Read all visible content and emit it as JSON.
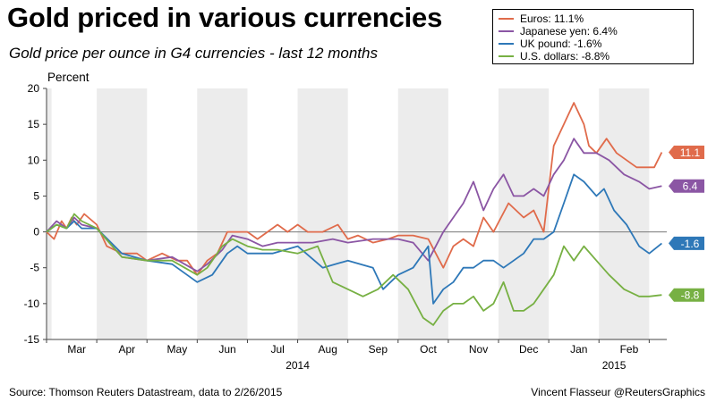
{
  "header": {
    "title": "Gold priced in various currencies",
    "subtitle": "Gold price per ounce in G4 currencies - last 12 months"
  },
  "footer": {
    "source": "Source: Thomson Reuters Datastream, data to 2/26/2015",
    "credit": "Vincent Flasseur @ReutersGraphics"
  },
  "chart_data": {
    "type": "line",
    "ylabel": "Percent",
    "ylim": [
      -15,
      20
    ],
    "yticks": [
      20,
      15,
      10,
      5,
      0,
      -5,
      -10,
      -15
    ],
    "grid": "alternating month bands",
    "legend_position": "top-right",
    "x_range": [
      0,
      12.35
    ],
    "months": [
      "Mar",
      "Apr",
      "May",
      "Jun",
      "Jul",
      "Aug",
      "Sep",
      "Oct",
      "Nov",
      "Dec",
      "Jan",
      "Feb"
    ],
    "year_labels": [
      {
        "label": "2014",
        "at": 5.0
      },
      {
        "label": "2015",
        "at": 11.3
      }
    ],
    "series": [
      {
        "name": "Euros: 11.1%",
        "end_label": "11.1",
        "color": "#e06b4b",
        "x": [
          0,
          0.15,
          0.3,
          0.4,
          0.5,
          0.6,
          0.75,
          1.0,
          1.2,
          1.5,
          1.8,
          2.0,
          2.3,
          2.6,
          2.8,
          3.0,
          3.2,
          3.4,
          3.6,
          3.8,
          4.0,
          4.2,
          4.4,
          4.6,
          4.8,
          5.0,
          5.2,
          5.5,
          5.8,
          6.0,
          6.2,
          6.5,
          6.8,
          7.0,
          7.3,
          7.6,
          7.9,
          8.1,
          8.3,
          8.5,
          8.7,
          8.9,
          9.2,
          9.5,
          9.7,
          9.9,
          10.1,
          10.3,
          10.5,
          10.7,
          10.8,
          10.95,
          11.15,
          11.35,
          11.55,
          11.75,
          11.95,
          12.1,
          12.25
        ],
        "values": [
          0,
          -1,
          1.5,
          0.5,
          2,
          1,
          2.5,
          1,
          -2,
          -3,
          -3,
          -4,
          -3,
          -4,
          -4,
          -6,
          -4,
          -3,
          0,
          0,
          0,
          -1,
          0,
          1,
          0,
          1,
          0,
          0,
          1,
          -1,
          -0.5,
          -1.5,
          -1,
          -0.5,
          -0.5,
          -1,
          -5,
          -2,
          -1,
          -2,
          2,
          0,
          4,
          2,
          3,
          0,
          12,
          15,
          18,
          15,
          12,
          11,
          13,
          11,
          10,
          9,
          9,
          9,
          11.1
        ]
      },
      {
        "name": "Japanese yen: 6.4%",
        "end_label": "6.4",
        "color": "#8b56a4",
        "x": [
          0,
          0.2,
          0.4,
          0.55,
          0.7,
          1.0,
          1.5,
          2.0,
          2.5,
          3.0,
          3.2,
          3.5,
          3.7,
          4.0,
          4.3,
          4.6,
          5.0,
          5.3,
          5.7,
          6.0,
          6.5,
          7.0,
          7.3,
          7.6,
          7.9,
          8.1,
          8.3,
          8.5,
          8.7,
          8.9,
          9.1,
          9.3,
          9.5,
          9.7,
          9.9,
          10.1,
          10.3,
          10.5,
          10.7,
          10.95,
          11.2,
          11.5,
          11.8,
          12.0,
          12.25
        ],
        "values": [
          0,
          1.5,
          0.5,
          2,
          1,
          0.5,
          -3.5,
          -4,
          -3.5,
          -5.5,
          -4.5,
          -2.5,
          -0.5,
          -1,
          -2,
          -1.5,
          -1.5,
          -1.5,
          -1,
          -1.5,
          -1,
          -1,
          -1.5,
          -4,
          0,
          2,
          4,
          7,
          3,
          6,
          8,
          5,
          5,
          6,
          5,
          8,
          10,
          13,
          11,
          11,
          10,
          8,
          7,
          6,
          6.4
        ]
      },
      {
        "name": "UK pound: -1.6%",
        "end_label": "-1.6",
        "color": "#2e78b8",
        "x": [
          0,
          0.2,
          0.4,
          0.55,
          0.7,
          1.0,
          1.5,
          2.0,
          2.5,
          3.0,
          3.3,
          3.6,
          3.8,
          4.0,
          4.5,
          5.0,
          5.5,
          6.0,
          6.5,
          6.7,
          7.0,
          7.3,
          7.6,
          7.7,
          7.9,
          8.1,
          8.3,
          8.5,
          8.7,
          8.9,
          9.1,
          9.3,
          9.5,
          9.7,
          9.9,
          10.1,
          10.3,
          10.5,
          10.7,
          10.95,
          11.1,
          11.3,
          11.55,
          11.8,
          12.0,
          12.25
        ],
        "values": [
          0,
          1,
          0.5,
          1.5,
          0.5,
          0.5,
          -3,
          -4,
          -4.5,
          -7,
          -6,
          -3,
          -2,
          -3,
          -3,
          -2,
          -5,
          -4,
          -5,
          -8,
          -6,
          -5,
          -2,
          -10,
          -8,
          -7,
          -5,
          -5,
          -4,
          -4,
          -5,
          -4,
          -3,
          -1,
          -1,
          0,
          4,
          8,
          7,
          5,
          6,
          3,
          1,
          -2,
          -3,
          -1.6
        ]
      },
      {
        "name": "U.S. dollars: -8.8%",
        "end_label": "-8.8",
        "color": "#77b043",
        "x": [
          0,
          0.2,
          0.4,
          0.55,
          0.7,
          1.0,
          1.5,
          2.0,
          2.5,
          3.0,
          3.2,
          3.5,
          3.7,
          4.0,
          4.3,
          4.6,
          5.0,
          5.4,
          5.7,
          6.0,
          6.3,
          6.6,
          6.9,
          7.2,
          7.5,
          7.7,
          7.9,
          8.1,
          8.3,
          8.5,
          8.7,
          8.9,
          9.1,
          9.3,
          9.5,
          9.7,
          9.9,
          10.1,
          10.3,
          10.5,
          10.7,
          10.95,
          11.2,
          11.5,
          11.8,
          12.0,
          12.25
        ],
        "values": [
          0,
          1,
          0.5,
          2.5,
          1.5,
          0.5,
          -3.5,
          -4,
          -4,
          -6,
          -5,
          -2,
          -1,
          -2,
          -2.5,
          -2.5,
          -3,
          -2,
          -7,
          -8,
          -9,
          -8,
          -6,
          -8,
          -12,
          -13,
          -11,
          -10,
          -10,
          -9,
          -11,
          -10,
          -7,
          -11,
          -11,
          -10,
          -8,
          -6,
          -2,
          -4,
          -2,
          -4,
          -6,
          -8,
          -9,
          -9,
          -8.8
        ]
      }
    ]
  }
}
